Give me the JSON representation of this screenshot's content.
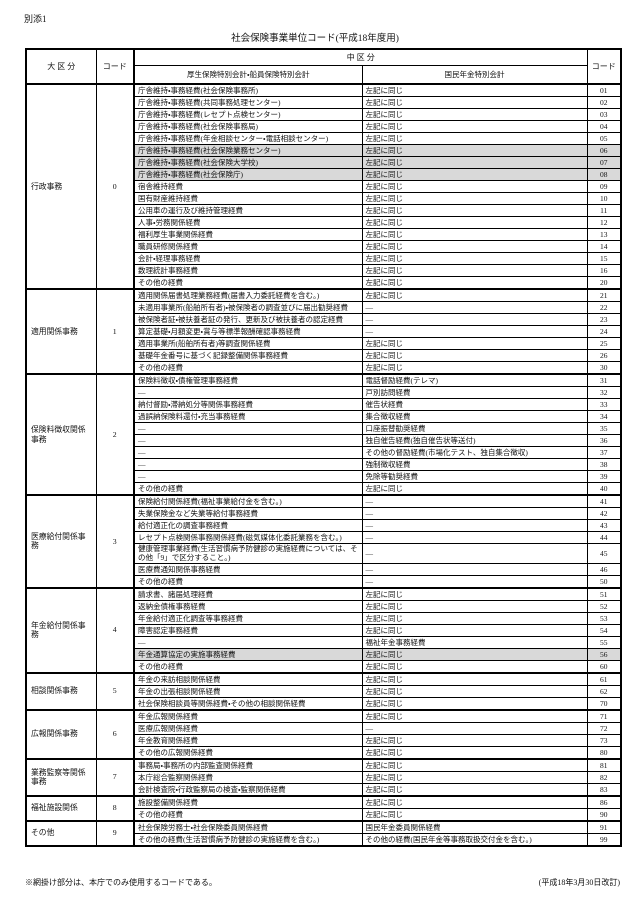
{
  "page": {
    "attachment_label": "別添1",
    "title": "社会保険事業単位コード(平成18年度用)",
    "footnote": "※網掛け部分は、本庁でのみ使用するコードである。",
    "revision": "(平成18年3月30日改訂)",
    "shaded_color": "#d9d9d9"
  },
  "table": {
    "headers": {
      "major_category": "大 区 分",
      "code": "コード",
      "middle_category": "中 区 分",
      "col_left": "厚生保険特別会計・船員保険特別会計",
      "col_right": "国民年金特別会計",
      "code_right": "コード"
    },
    "sections": [
      {
        "name": "行政事務",
        "code": "0",
        "rows": [
          {
            "left": "庁舎維持・事務経費(社会保険事務所)",
            "right": "左記に同じ",
            "code": "01"
          },
          {
            "left": "庁舎維持・事務経費(共同事務処理センター)",
            "right": "左記に同じ",
            "code": "02"
          },
          {
            "left": "庁舎維持・事務経費(レセプト点検センター)",
            "right": "左記に同じ",
            "code": "03"
          },
          {
            "left": "庁舎維持・事務経費(社会保険事務局)",
            "right": "左記に同じ",
            "code": "04"
          },
          {
            "left": "庁舎維持・事務経費(年金相談センター・電話相談センター)",
            "right": "左記に同じ",
            "code": "05"
          },
          {
            "left": "庁舎維持・事務経費(社会保険業務センター)",
            "right": "左記に同じ",
            "code": "06",
            "shaded": true
          },
          {
            "left": "庁舎維持・事務経費(社会保険大学校)",
            "right": "左記に同じ",
            "code": "07",
            "shaded": true
          },
          {
            "left": "庁舎維持・事務経費(社会保険庁)",
            "right": "左記に同じ",
            "code": "08",
            "shaded": true
          },
          {
            "left": "宿舎維持経費",
            "right": "左記に同じ",
            "code": "09"
          },
          {
            "left": "国有財産維持経費",
            "right": "左記に同じ",
            "code": "10"
          },
          {
            "left": "公用車の運行及び維持管理経費",
            "right": "左記に同じ",
            "code": "11"
          },
          {
            "left": "人事・労務関係経費",
            "right": "左記に同じ",
            "code": "12"
          },
          {
            "left": "福利厚生事業関係経費",
            "right": "左記に同じ",
            "code": "13"
          },
          {
            "left": "職員研修関係経費",
            "right": "左記に同じ",
            "code": "14"
          },
          {
            "left": "会計・経理事務経費",
            "right": "左記に同じ",
            "code": "15"
          },
          {
            "left": "数理統計事務経費",
            "right": "左記に同じ",
            "code": "16"
          },
          {
            "left": "その他の経費",
            "right": "左記に同じ",
            "code": "20"
          }
        ]
      },
      {
        "name": "適用関係事務",
        "code": "1",
        "rows": [
          {
            "left": "適用関係届書処理業務経費(届書入力委託経費を含む。)",
            "right": "左記に同じ",
            "code": "21"
          },
          {
            "left": "未適用事業所(船舶所有者)・被保険者の調査並びに届出勧奨経費",
            "right": "―",
            "code": "22"
          },
          {
            "left": "被保険者証・被扶養者証の発行、更新及び被扶養者の認定経費",
            "right": "―",
            "code": "23"
          },
          {
            "left": "算定基礎・月額変更・賞与等標準報酬確認事務経費",
            "right": "―",
            "code": "24"
          },
          {
            "left": "適用事業所(船舶所有者)等調査関係経費",
            "right": "左記に同じ",
            "code": "25"
          },
          {
            "left": "基礎年金番号に基づく記録整備関係事務経費",
            "right": "左記に同じ",
            "code": "26"
          },
          {
            "left": "その他の経費",
            "right": "左記に同じ",
            "code": "30"
          }
        ]
      },
      {
        "name": "保険料徴収関係事務",
        "code": "2",
        "rows": [
          {
            "left": "保険料徴収・債権管理事務経費",
            "right": "電話督励経費(テレマ)",
            "code": "31"
          },
          {
            "left": "―",
            "right": "戸別訪問経費",
            "code": "32"
          },
          {
            "left": "納付督励・滞納処分等関係事務経費",
            "right": "催告状経費",
            "code": "33"
          },
          {
            "left": "過誤納保険料還付・充当事務経費",
            "right": "集合徴収経費",
            "code": "34"
          },
          {
            "left": "―",
            "right": "口座振替勧奨経費",
            "code": "35"
          },
          {
            "left": "―",
            "right": "独自催告経費(独自催告状等送付)",
            "code": "36"
          },
          {
            "left": "―",
            "right": "その他の督励経費(市場化テスト、独自集合徴収)",
            "code": "37"
          },
          {
            "left": "―",
            "right": "強制徴収経費",
            "code": "38"
          },
          {
            "left": "―",
            "right": "免除等勧奨経費",
            "code": "39"
          },
          {
            "left": "その他の経費",
            "right": "左記に同じ",
            "code": "40"
          }
        ]
      },
      {
        "name": "医療給付関係事務",
        "code": "3",
        "rows": [
          {
            "left": "保険給付関係経費(福祉事業給付金を含む。)",
            "right": "―",
            "code": "41"
          },
          {
            "left": "失業保険金など失業等給付事務経費",
            "right": "―",
            "code": "42"
          },
          {
            "left": "給付適正化の調査事務経費",
            "right": "―",
            "code": "43"
          },
          {
            "left": "レセプト点検関係事務関係経費(磁気媒体化委託業務を含む。)",
            "right": "―",
            "code": "44"
          },
          {
            "left": "健康管理事業経費(生活習慣病予防健診の実施経費については、その他「9」で区分すること。)",
            "right": "―",
            "code": "45"
          },
          {
            "left": "医療費通知関係事務経費",
            "right": "―",
            "code": "46"
          },
          {
            "left": "その他の経費",
            "right": "―",
            "code": "50"
          }
        ]
      },
      {
        "name": "年金給付関係事務",
        "code": "4",
        "rows": [
          {
            "left": "請求書、諸届処理経費",
            "right": "左記に同じ",
            "code": "51"
          },
          {
            "left": "返納金債権事務経費",
            "right": "左記に同じ",
            "code": "52"
          },
          {
            "left": "年金給付適正化調査等事務経費",
            "right": "左記に同じ",
            "code": "53"
          },
          {
            "left": "障害認定事務経費",
            "right": "左記に同じ",
            "code": "54"
          },
          {
            "left": "―",
            "right": "福祉年金事務経費",
            "code": "55"
          },
          {
            "left": "年金通算協定の実施事務経費",
            "right": "左記に同じ",
            "code": "56",
            "shaded": true
          },
          {
            "left": "その他の経費",
            "right": "左記に同じ",
            "code": "60"
          }
        ]
      },
      {
        "name": "相談関係事務",
        "code": "5",
        "rows": [
          {
            "left": "年金の来訪相談関係経費",
            "right": "左記に同じ",
            "code": "61"
          },
          {
            "left": "年金の出張相談関係経費",
            "right": "左記に同じ",
            "code": "62"
          },
          {
            "left": "社会保険相談員等関係経費・その他の相談関係経費",
            "right": "左記に同じ",
            "code": "70"
          }
        ]
      },
      {
        "name": "広報関係事務",
        "code": "6",
        "rows": [
          {
            "left": "年金広報関係経費",
            "right": "左記に同じ",
            "code": "71"
          },
          {
            "left": "医療広報関係経費",
            "right": "―",
            "code": "72"
          },
          {
            "left": "年金教育関係経費",
            "right": "左記に同じ",
            "code": "73"
          },
          {
            "left": "その他の広報関係経費",
            "right": "左記に同じ",
            "code": "80"
          }
        ]
      },
      {
        "name": "業務監察等関係事務",
        "code": "7",
        "rows": [
          {
            "left": "事務局・事務所の内部監査関係経費",
            "right": "左記に同じ",
            "code": "81"
          },
          {
            "left": "本庁総合監察関係経費",
            "right": "左記に同じ",
            "code": "82"
          },
          {
            "left": "会計検査院・行政監察局の検査・監察関係経費",
            "right": "左記に同じ",
            "code": "83"
          }
        ]
      },
      {
        "name": "福祉施設関係",
        "code": "8",
        "rows": [
          {
            "left": "施設整備関係経費",
            "right": "左記に同じ",
            "code": "86"
          },
          {
            "left": "その他の経費",
            "right": "左記に同じ",
            "code": "90"
          }
        ]
      },
      {
        "name": "その他",
        "code": "9",
        "rows": [
          {
            "left": "社会保険労務士・社会保険委員関係経費",
            "right": "国民年金委員関係経費",
            "code": "91"
          },
          {
            "left": "その他の経費(生活習慣病予防健診の実施経費を含む。)",
            "right": "その他の経費(国民年金等事務取扱交付金を含む。)",
            "code": "99"
          }
        ]
      }
    ]
  }
}
